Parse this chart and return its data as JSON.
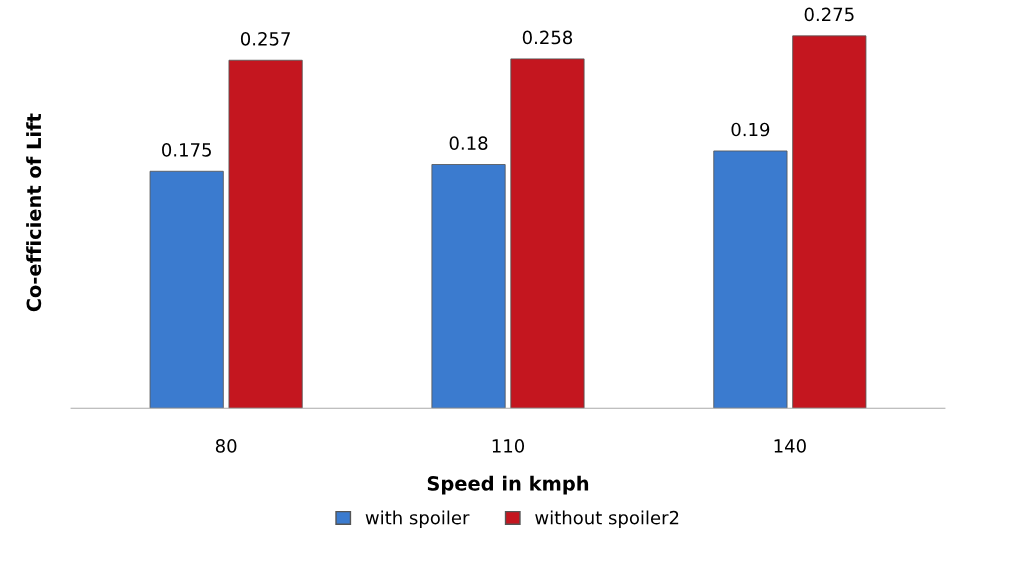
{
  "chart_data": {
    "type": "bar",
    "xlabel": "Speed in kmph",
    "ylabel": "Co-efficient of Lift",
    "categories": [
      "80",
      "110",
      "140"
    ],
    "series": [
      {
        "name": "with spoiler",
        "color": "#3b7bcf",
        "values": [
          0.175,
          0.18,
          0.19
        ]
      },
      {
        "name": "without spoiler2",
        "color": "#c4161f",
        "values": [
          0.257,
          0.258,
          0.275
        ]
      }
    ],
    "data_labels": true,
    "legend": "bottom",
    "grid": false
  }
}
